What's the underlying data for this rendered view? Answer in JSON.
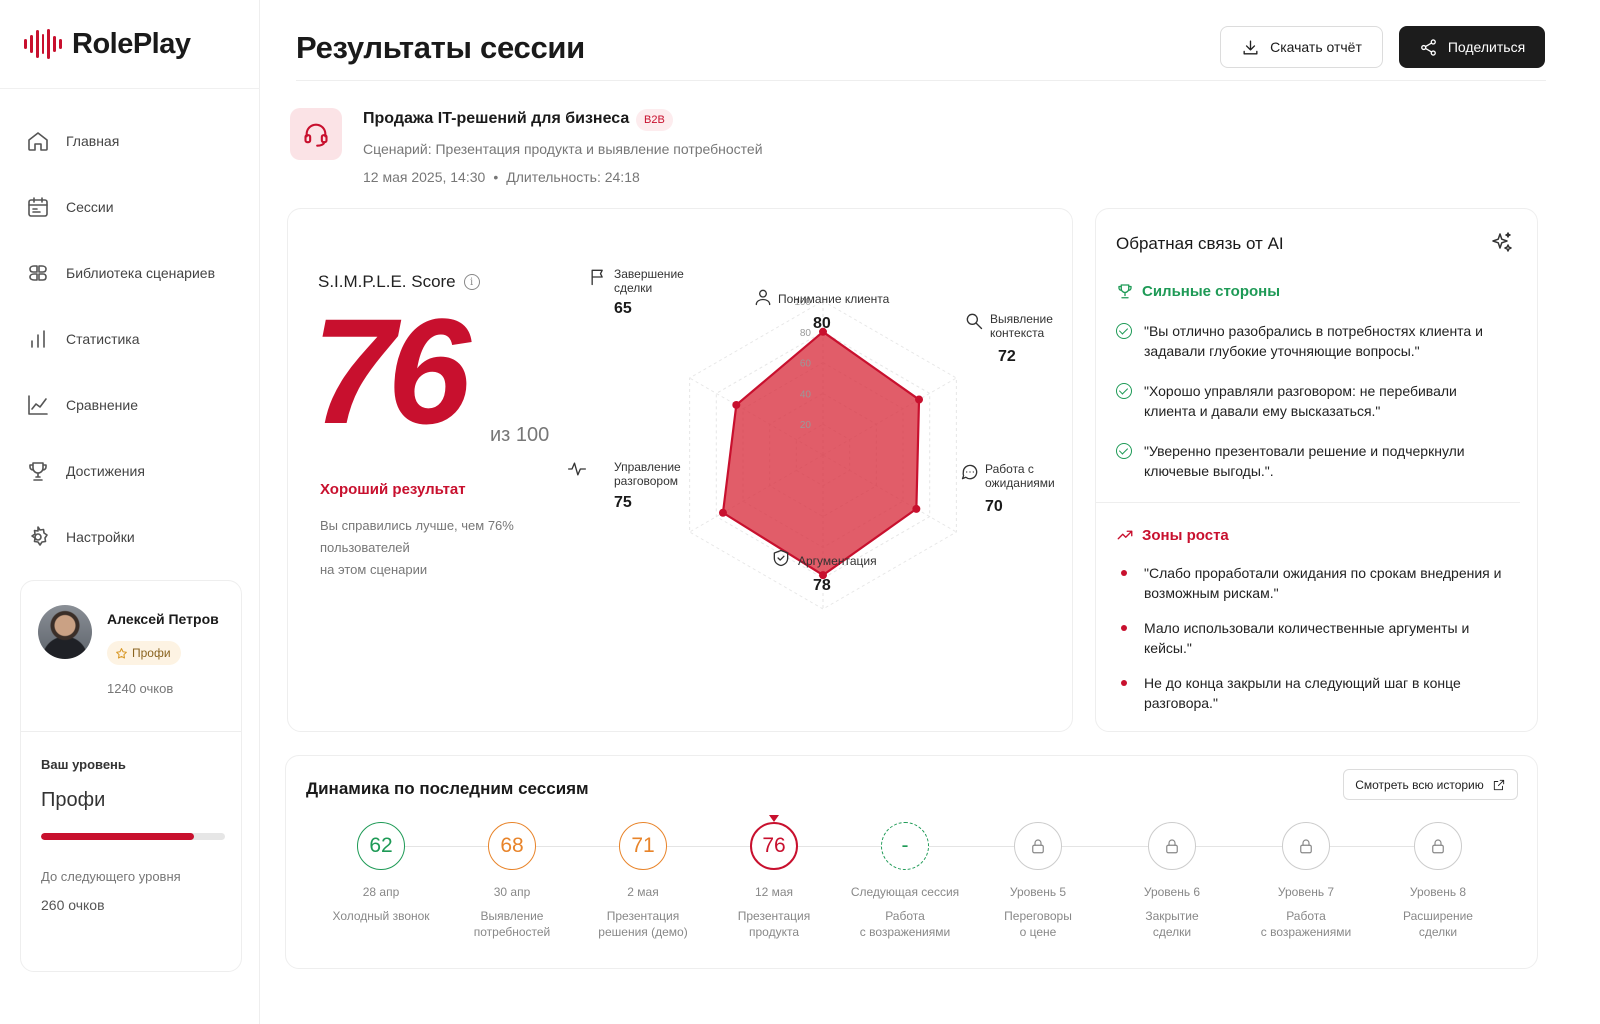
{
  "app": {
    "name": "RolePlay",
    "brand_color": "#c8102e"
  },
  "sidebar": {
    "items": [
      {
        "label": "Главная",
        "icon": "home-icon"
      },
      {
        "label": "Сессии",
        "icon": "calendar-icon"
      },
      {
        "label": "Библиотека сценариев",
        "icon": "library-icon"
      },
      {
        "label": "Статистика",
        "icon": "bar-chart-icon"
      },
      {
        "label": "Сравнение",
        "icon": "line-chart-icon"
      },
      {
        "label": "Достижения",
        "icon": "trophy-icon"
      },
      {
        "label": "Настройки",
        "icon": "gear-icon"
      }
    ],
    "profile": {
      "name": "Алексей Петров",
      "badge": "Профи",
      "points": "1240 очков",
      "level_label": "Ваш уровень",
      "level_name": "Профи",
      "level_progress": 0.83,
      "next_label": "До следующего уровня",
      "next_points": "260 очков"
    }
  },
  "header": {
    "title": "Результаты сессии",
    "download_label": "Скачать отчёт",
    "share_label": "Поделиться"
  },
  "session": {
    "title": "Продажа IT-решений для бизнеса",
    "tag": "B2B",
    "scenario": "Сценарий: Презентация продукта и выявление потребностей",
    "date": "12 мая 2025, 14:30",
    "duration": "Длительность: 24:18"
  },
  "score": {
    "label": "S.I.M.P.L.E. Score",
    "value": "76",
    "of": "из 100",
    "verdict": "Хороший результат",
    "description": "Вы справились лучше, чем 76%\nпользователей\nна этом сценарии"
  },
  "chart_data": {
    "type": "radar",
    "range": [
      0,
      100
    ],
    "ticks": [
      "20",
      "40",
      "60",
      "80",
      "100"
    ],
    "categories": [
      "Понимание клиента",
      "Выявление контекста",
      "Работа с ожиданиями",
      "Аргументация",
      "Управление разговором",
      "Завершение сделки"
    ],
    "values": [
      80,
      72,
      70,
      78,
      75,
      65
    ],
    "value_labels": [
      "80",
      "72",
      "70",
      "78",
      "75",
      "65"
    ],
    "label_lines": [
      [
        "Понимание клиента"
      ],
      [
        "Выявление",
        "контекста"
      ],
      [
        "Работа с",
        "ожиданиями"
      ],
      [
        "Аргументация"
      ],
      [
        "Управление",
        "разговором"
      ],
      [
        "Завершение",
        "сделки"
      ]
    ],
    "colors": {
      "fill": "#d9303f",
      "stroke": "#c8102e"
    }
  },
  "feedback": {
    "title": "Обратная связь от AI",
    "strengths_title": "Сильные стороны",
    "strengths": [
      "\"Вы отлично разобрались в потребностях клиента и задавали глубокие уточняющие вопросы.\"",
      "\"Хорошо управляли разговором: не перебивали клиента и давали ему высказаться.\"",
      "\"Уверенно презентовали решение и подчеркнули ключевые выгоды.\"."
    ],
    "growth_title": "Зоны роста",
    "growth": [
      "\"Слабо проработали ожидания по срокам внедрения и возможным рискам.\"",
      "Мало использовали количественные аргументы и кейсы.\"",
      "Не до конца закрыли на следующий шаг в конце разговора.\""
    ]
  },
  "dynamics": {
    "title": "Динамика по последним сессиям",
    "history_label": "Смотреть всю историю",
    "nodes": [
      {
        "value": "62",
        "date": "28 апр",
        "name": "Холодный звонок",
        "state": "done",
        "color": "#1e9a56"
      },
      {
        "value": "68",
        "date": "30 апр",
        "name": "Выявление\nпотребностей",
        "state": "done",
        "color": "#e8842a"
      },
      {
        "value": "71",
        "date": "2 мая",
        "name": "Презентация\nрешения (демо)",
        "state": "done",
        "color": "#e8842a"
      },
      {
        "value": "76",
        "date": "12 мая",
        "name": "Презентация\nпродукта",
        "state": "current",
        "color": "#c8102e"
      },
      {
        "value": "-",
        "date": "Следующая сессия",
        "name": "Работа\nс возражениями",
        "state": "next",
        "color": "#1e9a56"
      },
      {
        "value": "",
        "date": "Уровень 5",
        "name": "Переговоры\nо цене",
        "state": "locked",
        "color": "#cccccc"
      },
      {
        "value": "",
        "date": "Уровень 6",
        "name": "Закрытие\nсделки",
        "state": "locked",
        "color": "#cccccc"
      },
      {
        "value": "",
        "date": "Уровень 7",
        "name": "Работа\nс возражениями",
        "state": "locked",
        "color": "#cccccc"
      },
      {
        "value": "",
        "date": "Уровень 8",
        "name": "Расширение\nсделки",
        "state": "locked",
        "color": "#cccccc"
      }
    ]
  }
}
